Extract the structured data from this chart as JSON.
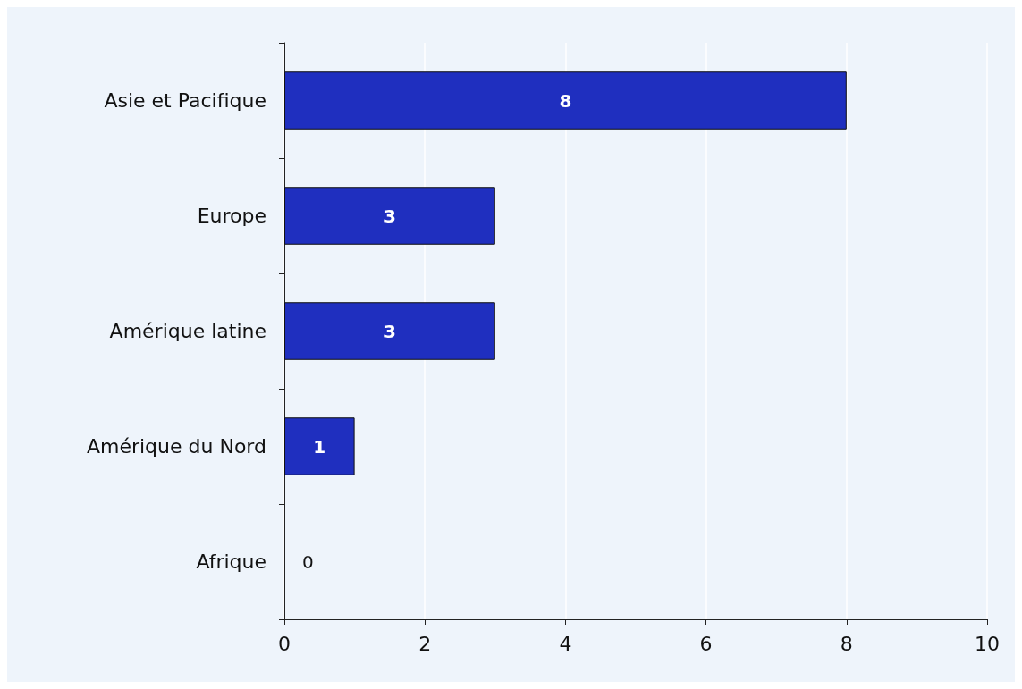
{
  "chart_data": {
    "type": "bar",
    "orientation": "horizontal",
    "categories": [
      "Asie et Pacifique",
      "Europe",
      "Amérique latine",
      "Amérique du Nord",
      "Afrique"
    ],
    "values": [
      8,
      3,
      3,
      1,
      0
    ],
    "color": "#1f2fbf",
    "xlim": [
      0,
      10
    ],
    "xticks": [
      0,
      2,
      4,
      6,
      8,
      10
    ],
    "grid": "x",
    "data_labels": true
  }
}
